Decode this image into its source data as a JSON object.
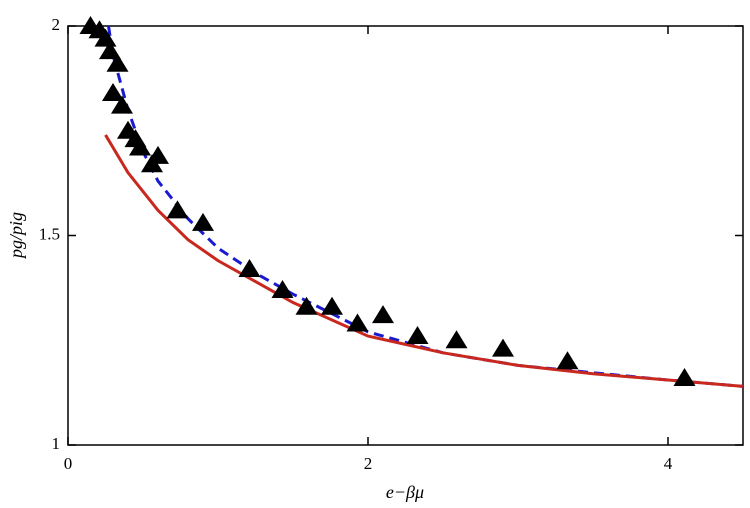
{
  "chart_data": {
    "type": "line",
    "x_label": "e−βμ",
    "y_label": "pg/pig",
    "xlim": [
      0,
      4.5
    ],
    "xticks": [
      0,
      2,
      4
    ],
    "ylim": [
      1,
      2
    ],
    "yticks": [
      1,
      1.5,
      2
    ],
    "grid": false,
    "series": [
      {
        "mode": "markers",
        "color": "#000000",
        "x": [
          0.15,
          0.21,
          0.25,
          0.28,
          0.33,
          0.3,
          0.36,
          0.4,
          0.45,
          0.48,
          0.56,
          0.6,
          0.73,
          0.9,
          1.21,
          1.43,
          1.59,
          1.76,
          1.93,
          2.1,
          2.33,
          2.59,
          2.9,
          3.33,
          4.11
        ],
        "values": [
          2.0,
          1.99,
          1.97,
          1.94,
          1.91,
          1.84,
          1.81,
          1.75,
          1.73,
          1.71,
          1.67,
          1.69,
          1.56,
          1.53,
          1.42,
          1.37,
          1.33,
          1.33,
          1.29,
          1.31,
          1.26,
          1.25,
          1.23,
          1.2,
          1.16
        ]
      },
      {
        "mode": "dashed",
        "color": "#1a1ad0",
        "x": [
          0.27,
          0.3,
          0.4,
          0.5,
          0.6,
          0.8,
          1.0,
          1.25,
          1.5,
          2,
          2.5,
          3,
          4,
          4.5
        ],
        "values": [
          2.0,
          1.93,
          1.8,
          1.7,
          1.63,
          1.54,
          1.47,
          1.41,
          1.36,
          1.27,
          1.22,
          1.19,
          1.155,
          1.14
        ]
      },
      {
        "mode": "solid",
        "color": "#c8281e",
        "x": [
          0.25,
          0.4,
          0.6,
          0.8,
          1.0,
          1.25,
          1.5,
          2,
          2.5,
          3,
          3.5,
          4,
          4.5
        ],
        "values": [
          1.74,
          1.65,
          1.56,
          1.49,
          1.44,
          1.39,
          1.34,
          1.26,
          1.22,
          1.19,
          1.17,
          1.155,
          1.14
        ]
      }
    ]
  }
}
